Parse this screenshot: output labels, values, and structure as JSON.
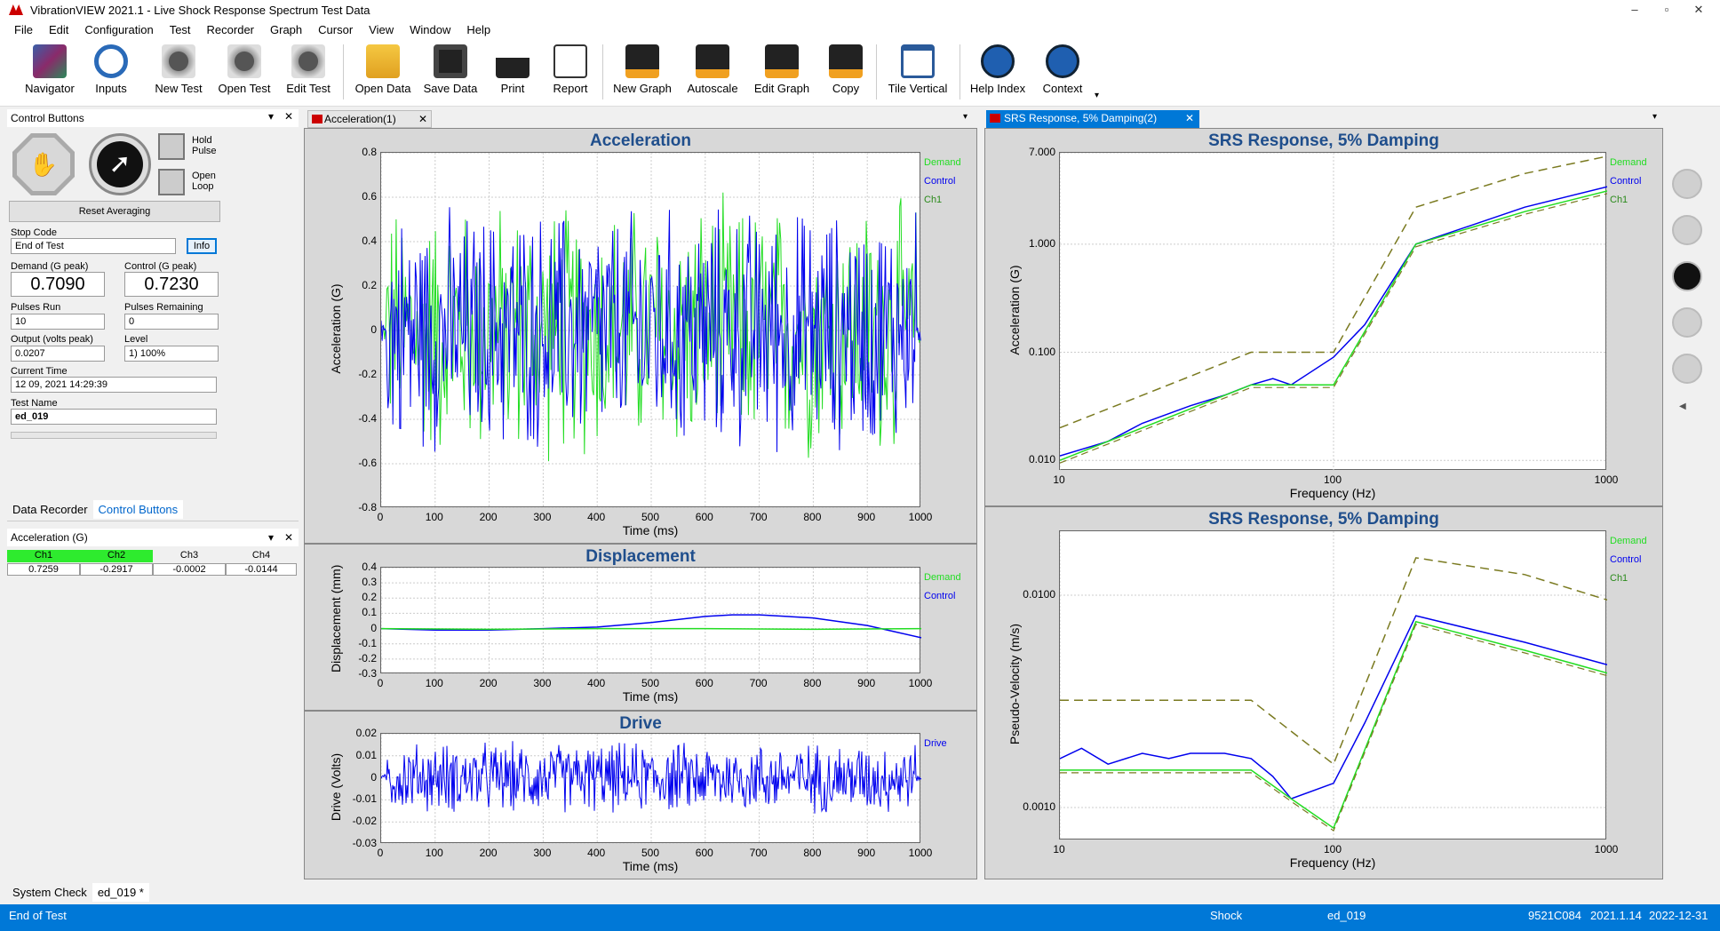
{
  "app": {
    "title": "VibrationVIEW 2021.1 - Live Shock Response Spectrum Test Data"
  },
  "menu": [
    "File",
    "Edit",
    "Configuration",
    "Test",
    "Recorder",
    "Graph",
    "Cursor",
    "View",
    "Window",
    "Help"
  ],
  "toolbar": [
    {
      "label": "Navigator",
      "icon": "navigator-icon"
    },
    {
      "label": "Inputs",
      "icon": "inputs-icon"
    },
    {
      "label": "New Test",
      "icon": "new-test-icon"
    },
    {
      "label": "Open Test",
      "icon": "open-test-icon"
    },
    {
      "label": "Edit Test",
      "icon": "edit-test-icon"
    },
    {
      "label": "Open Data",
      "icon": "open-data-icon"
    },
    {
      "label": "Save Data",
      "icon": "save-icon"
    },
    {
      "label": "Print",
      "icon": "print-icon"
    },
    {
      "label": "Report",
      "icon": "report-icon"
    },
    {
      "label": "New Graph",
      "icon": "new-graph-icon"
    },
    {
      "label": "Autoscale",
      "icon": "autoscale-icon"
    },
    {
      "label": "Edit Graph",
      "icon": "edit-graph-icon"
    },
    {
      "label": "Copy",
      "icon": "copy-icon"
    },
    {
      "label": "Tile Vertical",
      "icon": "tile-vertical-icon"
    },
    {
      "label": "Help Index",
      "icon": "help-icon"
    },
    {
      "label": "Context",
      "icon": "context-help-icon"
    }
  ],
  "control": {
    "header": "Control Buttons",
    "hold": "Hold Pulse",
    "open": "Open Loop",
    "reset": "Reset Averaging",
    "stop_code_label": "Stop Code",
    "stop_code": "End of Test",
    "info": "Info",
    "demand_label": "Demand (G peak)",
    "demand": "0.7090",
    "control_label": "Control (G peak)",
    "control": "0.7230",
    "pulses_run_label": "Pulses Run",
    "pulses_run": "10",
    "pulses_rem_label": "Pulses Remaining",
    "pulses_rem": "0",
    "output_label": "Output (volts peak)",
    "output": "0.0207",
    "level_label": "Level",
    "level": "1) 100%",
    "time_label": "Current Time",
    "time": "12 09, 2021 14:29:39",
    "test_label": "Test Name",
    "test": "ed_019"
  },
  "lefttabs": [
    "Data Recorder",
    "Control Buttons"
  ],
  "accel": {
    "header": "Acceleration (G)",
    "channels": [
      {
        "name": "Ch1",
        "value": "0.7259"
      },
      {
        "name": "Ch2",
        "value": "-0.2917"
      },
      {
        "name": "Ch3",
        "value": "-0.0002"
      },
      {
        "name": "Ch4",
        "value": "-0.0144"
      }
    ]
  },
  "bottomtabs": [
    "System Check",
    "ed_019 *"
  ],
  "doc1": {
    "tab": "Acceleration(1)"
  },
  "doc2": {
    "tab": "SRS Response, 5% Damping(2)"
  },
  "status": {
    "left": "End of Test",
    "mode": "Shock",
    "test": "ed_019",
    "serial": "9521C084",
    "ver": "2021.1.14",
    "date": "2022-12-31"
  },
  "colors": {
    "demand": "#22dd22",
    "control": "#0000ee",
    "ch1": "#2a8a1a",
    "dashed": "#7a7a20"
  },
  "chart_data": [
    {
      "type": "line",
      "title": "Acceleration",
      "xlabel": "Time (ms)",
      "ylabel": "Acceleration (G)",
      "xlim": [
        0,
        1000
      ],
      "ylim": [
        -0.8,
        0.8
      ],
      "xticks": [
        "0",
        "100",
        "200",
        "300",
        "400",
        "500",
        "600",
        "700",
        "800",
        "900",
        "1000"
      ],
      "yticks": [
        "0.8",
        "0.6",
        "0.4",
        "0.2",
        "0",
        "-0.2",
        "-0.4",
        "-0.6",
        "-0.8"
      ],
      "legend": [
        "Demand",
        "Control",
        "Ch1"
      ],
      "peak": 0.72
    },
    {
      "type": "line",
      "title": "Displacement",
      "xlabel": "Time (ms)",
      "ylabel": "Displacement (mm)",
      "xlim": [
        0,
        1000
      ],
      "ylim": [
        -0.3,
        0.4
      ],
      "xticks": [
        "0",
        "100",
        "200",
        "300",
        "400",
        "500",
        "600",
        "700",
        "800",
        "900",
        "1000"
      ],
      "yticks": [
        "0.4",
        "0.3",
        "0.2",
        "0.1",
        "0",
        "-0.1",
        "-0.2",
        "-0.3"
      ],
      "legend": [
        "Demand",
        "Control"
      ],
      "series": [
        {
          "name": "Control",
          "x": [
            0,
            100,
            200,
            300,
            400,
            500,
            600,
            650,
            700,
            800,
            900,
            950,
            1000
          ],
          "y": [
            0,
            -0.01,
            -0.01,
            0,
            0.01,
            0.04,
            0.08,
            0.09,
            0.09,
            0.07,
            0.02,
            -0.02,
            -0.06
          ]
        },
        {
          "name": "Demand",
          "x": [
            0,
            200,
            400,
            600,
            800,
            1000
          ],
          "y": [
            0,
            -0.005,
            0,
            0,
            -0.005,
            0
          ]
        }
      ]
    },
    {
      "type": "line",
      "title": "Drive",
      "xlabel": "Time (ms)",
      "ylabel": "Drive (Volts)",
      "xlim": [
        0,
        1000
      ],
      "ylim": [
        -0.03,
        0.02
      ],
      "xticks": [
        "0",
        "100",
        "200",
        "300",
        "400",
        "500",
        "600",
        "700",
        "800",
        "900",
        "1000"
      ],
      "yticks": [
        "0.02",
        "0.01",
        "0",
        "-0.01",
        "-0.02",
        "-0.03"
      ],
      "legend": [
        "Drive"
      ],
      "peak": 0.018
    },
    {
      "type": "line",
      "title": "SRS Response, 5% Damping",
      "xlabel": "Frequency (Hz)",
      "ylabel": "Acceleration (G)",
      "xscale": "log",
      "yscale": "log",
      "xlim": [
        10,
        1000
      ],
      "ylim": [
        0.008,
        7
      ],
      "xticks": [
        "10",
        "100",
        "1000"
      ],
      "yticks": [
        "7.000",
        "1.000",
        "0.100",
        "0.010"
      ],
      "legend": [
        "Demand",
        "Control",
        "Ch1"
      ],
      "series": [
        {
          "name": "Demand",
          "x": [
            10,
            50,
            100,
            200,
            500,
            1000
          ],
          "y": [
            0.02,
            0.1,
            0.1,
            2.2,
            4.5,
            6.5
          ]
        },
        {
          "name": "Control",
          "x": [
            10,
            15,
            20,
            30,
            40,
            50,
            60,
            70,
            100,
            130,
            200,
            500,
            1000
          ],
          "y": [
            0.011,
            0.015,
            0.022,
            0.032,
            0.04,
            0.05,
            0.057,
            0.05,
            0.09,
            0.18,
            1.0,
            2.2,
            3.4
          ]
        },
        {
          "name": "Ch1",
          "x": [
            10,
            50,
            70,
            100,
            200,
            500,
            1000
          ],
          "y": [
            0.01,
            0.05,
            0.05,
            0.05,
            1.0,
            2.0,
            3.1
          ]
        }
      ]
    },
    {
      "type": "line",
      "title": "SRS Response, 5% Damping",
      "xlabel": "Frequency (Hz)",
      "ylabel": "Pseudo-Velocity (m/s)",
      "xscale": "log",
      "yscale": "log",
      "xlim": [
        10,
        1000
      ],
      "ylim": [
        0.0007,
        0.02
      ],
      "xticks": [
        "10",
        "100",
        "1000"
      ],
      "yticks": [
        "0.0100",
        "0.0010"
      ],
      "legend": [
        "Demand",
        "Control",
        "Ch1"
      ],
      "series": [
        {
          "name": "Demand",
          "x": [
            10,
            50,
            100,
            200,
            500,
            1000
          ],
          "y": [
            0.0032,
            0.0032,
            0.0016,
            0.015,
            0.0125,
            0.0095
          ]
        },
        {
          "name": "Control",
          "x": [
            10,
            12,
            15,
            20,
            25,
            30,
            40,
            50,
            60,
            70,
            100,
            130,
            200,
            500,
            1000
          ],
          "y": [
            0.0017,
            0.0019,
            0.0016,
            0.0018,
            0.0017,
            0.0018,
            0.0018,
            0.0017,
            0.0014,
            0.0011,
            0.0013,
            0.0025,
            0.008,
            0.006,
            0.0047
          ]
        },
        {
          "name": "Ch1",
          "x": [
            10,
            50,
            70,
            100,
            200,
            500,
            1000
          ],
          "y": [
            0.0015,
            0.0015,
            0.0011,
            0.0008,
            0.0075,
            0.0055,
            0.0043
          ]
        }
      ]
    }
  ]
}
